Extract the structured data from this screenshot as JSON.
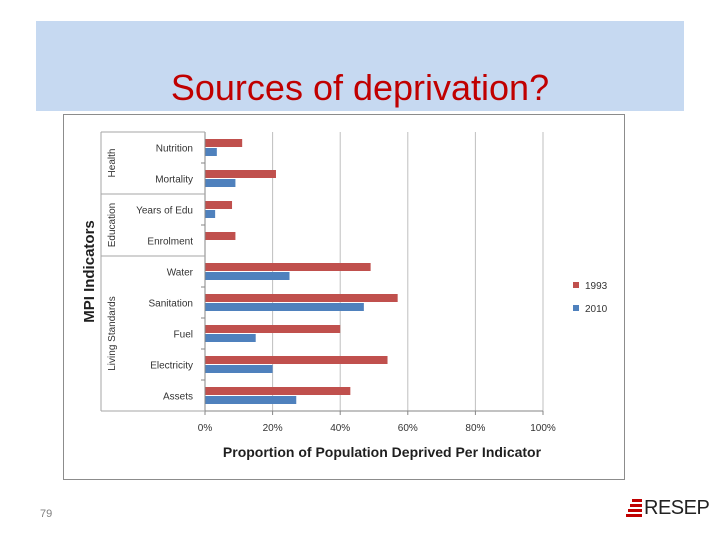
{
  "slide": {
    "title": "Sources of deprivation?",
    "number": "79",
    "logo_text": "RESEP"
  },
  "colors": {
    "title_band": "#c6d9f1",
    "title_text": "#c00000",
    "series_1993": "#c0504d",
    "series_2010": "#4f81bd"
  },
  "chart_data": {
    "type": "bar",
    "orientation": "horizontal",
    "xlabel": "Proportion of Population Deprived Per Indicator",
    "ylabel": "MPI Indicators",
    "xlim": [
      0,
      1
    ],
    "xticks": [
      "0%",
      "20%",
      "40%",
      "60%",
      "80%",
      "100%"
    ],
    "categories": [
      "Nutrition",
      "Mortality",
      "Years of Edu",
      "Enrolment",
      "Water",
      "Sanitation",
      "Fuel",
      "Electricity",
      "Assets"
    ],
    "groups": [
      {
        "label": "Health",
        "categories": [
          "Nutrition",
          "Mortality"
        ]
      },
      {
        "label": "Education",
        "categories": [
          "Years of Edu",
          "Enrolment"
        ]
      },
      {
        "label": "Living Standards",
        "categories": [
          "Water",
          "Sanitation",
          "Fuel",
          "Electricity",
          "Assets"
        ]
      }
    ],
    "series": [
      {
        "name": "1993",
        "color": "#c0504d",
        "values": [
          0.11,
          0.21,
          0.08,
          0.09,
          0.49,
          0.57,
          0.4,
          0.54,
          0.43
        ]
      },
      {
        "name": "2010",
        "color": "#4f81bd",
        "values": [
          0.035,
          0.09,
          0.03,
          0.0,
          0.25,
          0.47,
          0.15,
          0.2,
          0.27
        ]
      }
    ],
    "legend_position": "right",
    "grid": true
  }
}
